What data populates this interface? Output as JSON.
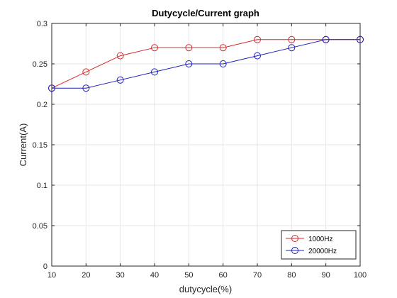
{
  "chart_data": {
    "type": "line",
    "title": "Dutycycle/Current graph",
    "xlabel": "dutycycle(%)",
    "ylabel": "Current(A)",
    "xlim": [
      10,
      100
    ],
    "ylim": [
      0,
      0.3
    ],
    "x": [
      10,
      20,
      30,
      40,
      50,
      60,
      70,
      80,
      90,
      100
    ],
    "xticks": [
      "10",
      "20",
      "30",
      "40",
      "50",
      "60",
      "70",
      "80",
      "90",
      "100"
    ],
    "yticks": [
      "0",
      "0.05",
      "0.1",
      "0.15",
      "0.2",
      "0.25",
      "0.3"
    ],
    "grid": true,
    "legend_position": "bottom-right",
    "series": [
      {
        "name": "1000Hz",
        "color": "#d62728",
        "marker": "circle",
        "values": [
          0.22,
          0.24,
          0.26,
          0.27,
          0.27,
          0.27,
          0.28,
          0.28,
          0.28,
          0.28
        ]
      },
      {
        "name": "20000Hz",
        "color": "#1f1fbf",
        "marker": "circle",
        "values": [
          0.22,
          0.22,
          0.23,
          0.24,
          0.25,
          0.25,
          0.26,
          0.27,
          0.28,
          0.28
        ]
      }
    ]
  }
}
